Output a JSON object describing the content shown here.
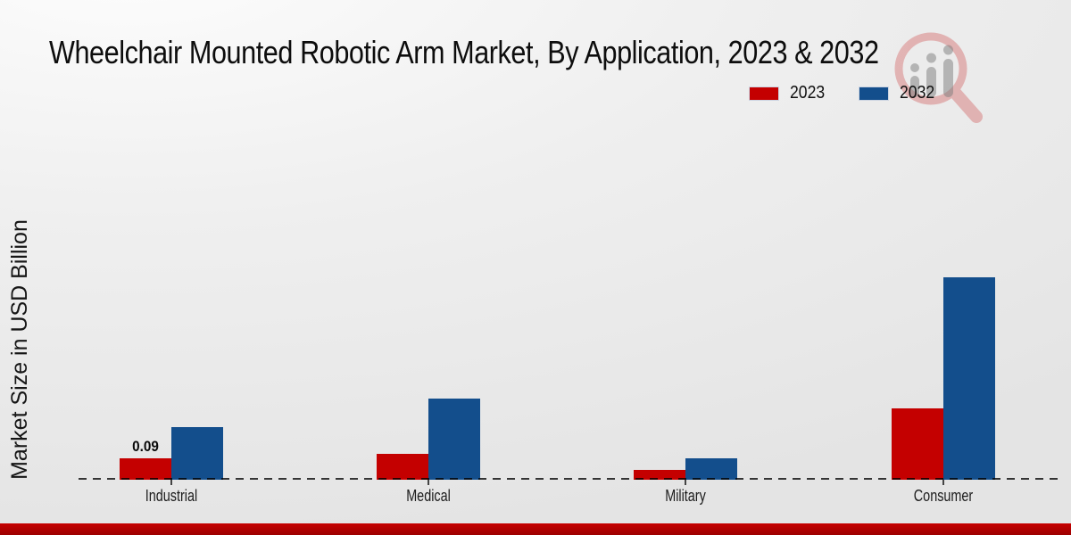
{
  "title": "Wheelchair Mounted Robotic Arm Market, By Application, 2023 & 2032",
  "legend": {
    "items": [
      {
        "label": "2023",
        "color": "#c40000"
      },
      {
        "label": "2032",
        "color": "#134e8c"
      }
    ]
  },
  "colors": {
    "series_2023": "#c40000",
    "series_2032": "#134e8c",
    "footer_strip": "#b30000",
    "background": "#ebebeb",
    "axis_dash": "#3a3a3a"
  },
  "watermark": {
    "name": "market-research-magnifier-logo"
  },
  "chart_data": {
    "type": "bar",
    "title": "Wheelchair Mounted Robotic Arm Market, By Application, 2023 & 2032",
    "xlabel": "",
    "ylabel": "Market Size in USD Billion",
    "categories": [
      "Industrial",
      "Medical",
      "Military",
      "Consumer"
    ],
    "series": [
      {
        "name": "2023",
        "color": "#c40000",
        "values": [
          0.09,
          0.11,
          0.04,
          0.3
        ]
      },
      {
        "name": "2032",
        "color": "#134e8c",
        "values": [
          0.22,
          0.34,
          0.09,
          0.85
        ]
      }
    ],
    "ylim": [
      0,
      0.9
    ],
    "grid": false,
    "y_axis_ticks_visible": false,
    "baseline_style": "dashed",
    "legend_position": "top-right",
    "data_labels": [
      {
        "category": "Industrial",
        "series": "2023",
        "label": "0.09"
      }
    ]
  }
}
